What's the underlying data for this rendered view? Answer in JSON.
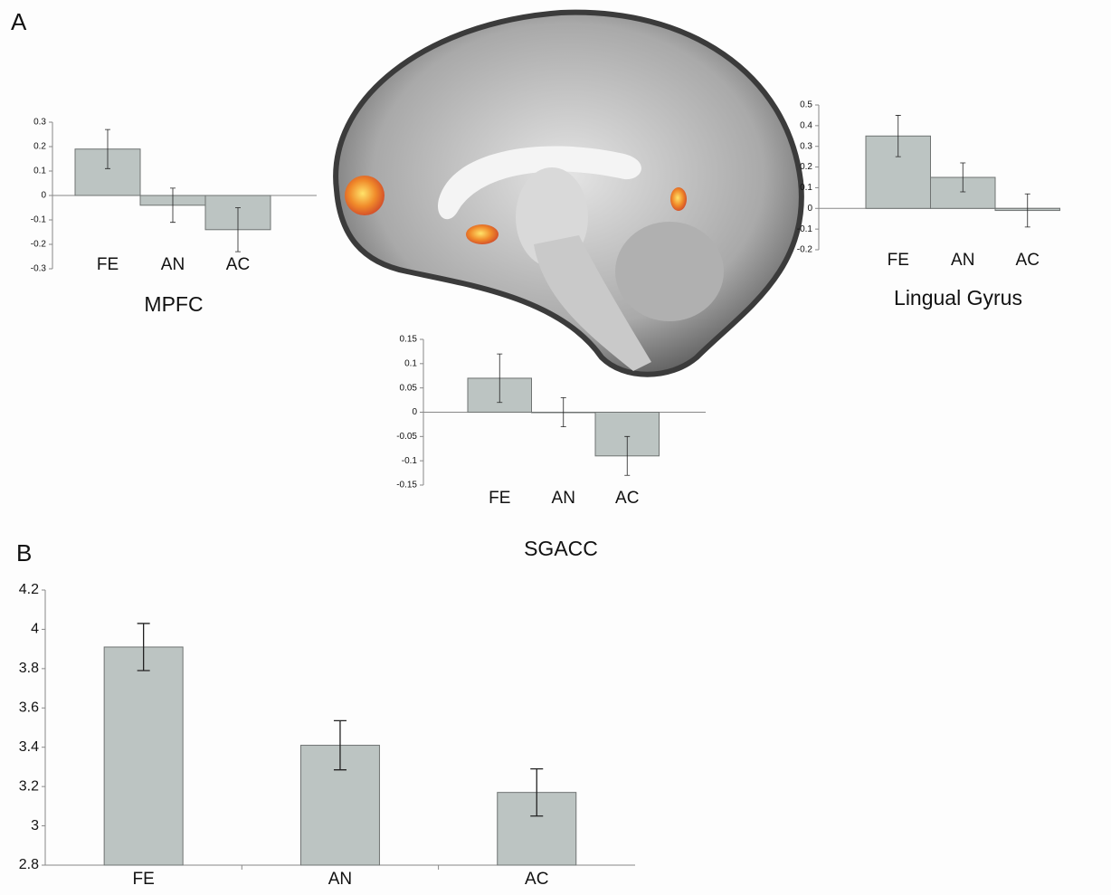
{
  "panels": [
    "A",
    "B"
  ],
  "chart_data": [
    {
      "type": "bar",
      "title": "MPFC",
      "categories": [
        "FE",
        "AN",
        "AC"
      ],
      "values": [
        0.19,
        -0.04,
        -0.14
      ],
      "errors": [
        0.08,
        0.07,
        0.09
      ],
      "color": "#bcc4c2",
      "ylim": [
        -0.3,
        0.3
      ],
      "yticks": [
        -0.3,
        -0.2,
        -0.1,
        0,
        0.1,
        0.2,
        0.3
      ]
    },
    {
      "type": "bar",
      "title": "Lingual Gyrus",
      "categories": [
        "FE",
        "AN",
        "AC"
      ],
      "values": [
        0.35,
        0.15,
        -0.01
      ],
      "errors": [
        0.1,
        0.07,
        0.08
      ],
      "color": "#bcc4c2",
      "ylim": [
        -0.2,
        0.5
      ],
      "yticks": [
        -0.2,
        -0.1,
        0,
        0.1,
        0.2,
        0.3,
        0.4,
        0.5
      ]
    },
    {
      "type": "bar",
      "title": "SGACC",
      "categories": [
        "FE",
        "AN",
        "AC"
      ],
      "values": [
        0.07,
        0,
        -0.09
      ],
      "errors": [
        0.05,
        0.03,
        0.04
      ],
      "color": "#bcc4c2",
      "ylim": [
        -0.15,
        0.15
      ],
      "yticks": [
        -0.15,
        -0.1,
        -0.05,
        0,
        0.05,
        0.1,
        0.15
      ]
    },
    {
      "type": "bar",
      "categories": [
        "FE",
        "AN",
        "AC"
      ],
      "values": [
        3.91,
        3.41,
        3.17
      ],
      "errors": [
        0.12,
        0.125,
        0.12
      ],
      "color": "#bcc4c2",
      "ylim": [
        2.8,
        4.2
      ],
      "yticks": [
        2.8,
        3,
        3.2,
        3.4,
        3.6,
        3.8,
        4,
        4.2
      ]
    }
  ]
}
